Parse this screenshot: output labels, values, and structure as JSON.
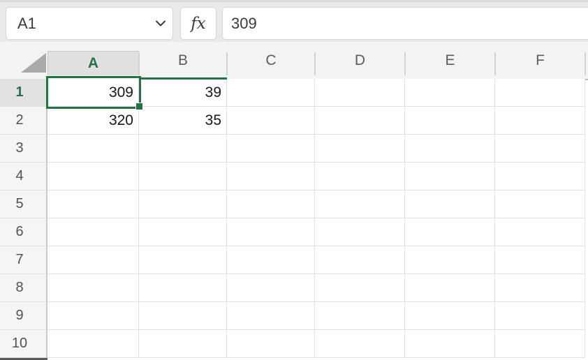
{
  "colors": {
    "accent_green": "#217346",
    "topbar_bg": "#e9e9e9",
    "header_bg": "#f3f3f3",
    "selected_header_bg": "#e0e0e0",
    "gridline": "#e2e2e2"
  },
  "topbar": {
    "name_box_value": "A1",
    "name_box_chevron_icon": "chevron-down",
    "fx_label": "fx",
    "formula_value": "309"
  },
  "sheet": {
    "columns": [
      "A",
      "B",
      "C",
      "D",
      "E",
      "F"
    ],
    "rows": [
      "1",
      "2",
      "3",
      "4",
      "5",
      "6",
      "7",
      "8",
      "9",
      "10"
    ],
    "selected_cell": "A1",
    "selected_column": "A",
    "selected_row": "1",
    "cells": {
      "A1": "309",
      "B1": "39",
      "A2": "320",
      "B2": "35"
    }
  }
}
